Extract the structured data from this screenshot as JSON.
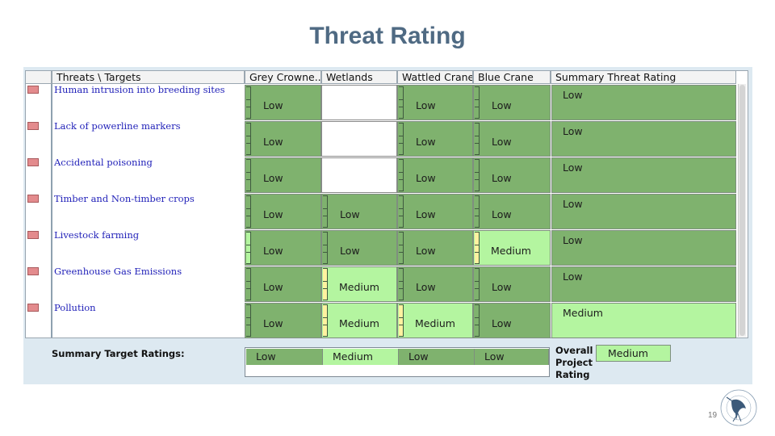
{
  "title": "Threat Rating",
  "table": {
    "headers": [
      "Threats \\ Targets",
      "Grey Crowne...",
      "Wetlands",
      "Wattled Crane",
      "Blue Crane",
      "Summary Threat Rating"
    ],
    "rows": [
      {
        "threat": "Human intrusion into breeding sites",
        "ratings": [
          "Low",
          "",
          "Low",
          "Low"
        ],
        "summary": "Low"
      },
      {
        "threat": "Lack of powerline markers",
        "ratings": [
          "Low",
          "",
          "Low",
          "Low"
        ],
        "summary": "Low"
      },
      {
        "threat": "Accidental poisoning",
        "ratings": [
          "Low",
          "",
          "Low",
          "Low"
        ],
        "summary": "Low"
      },
      {
        "threat": "Timber and Non-timber crops",
        "ratings": [
          "Low",
          "Low",
          "Low",
          "Low"
        ],
        "summary": "Low"
      },
      {
        "threat": "Livestock farming",
        "ratings": [
          "Low",
          "Low",
          "Low",
          "Medium"
        ],
        "summary": "Low"
      },
      {
        "threat": "Greenhouse Gas Emissions",
        "ratings": [
          "Low",
          "Medium",
          "Low",
          "Low"
        ],
        "summary": "Low"
      },
      {
        "threat": "Pollution",
        "ratings": [
          "Low",
          "Medium",
          "Medium",
          "Low"
        ],
        "summary": "Medium"
      }
    ]
  },
  "summary_target_ratings": {
    "label": "Summary Target Ratings:",
    "values": [
      "Low",
      "Medium",
      "Low",
      "Low"
    ]
  },
  "overall": {
    "label": "Overall Project Rating",
    "value": "Medium"
  },
  "page_number": "19",
  "colors": {
    "low": "#7fb26e",
    "medium": "#b4f5a0",
    "title": "#4f6a83",
    "threat_text": "#1f1fb8"
  },
  "icons": {
    "row_marker": "threat-marker-icon",
    "logo": "crane-foundation-logo-icon"
  }
}
